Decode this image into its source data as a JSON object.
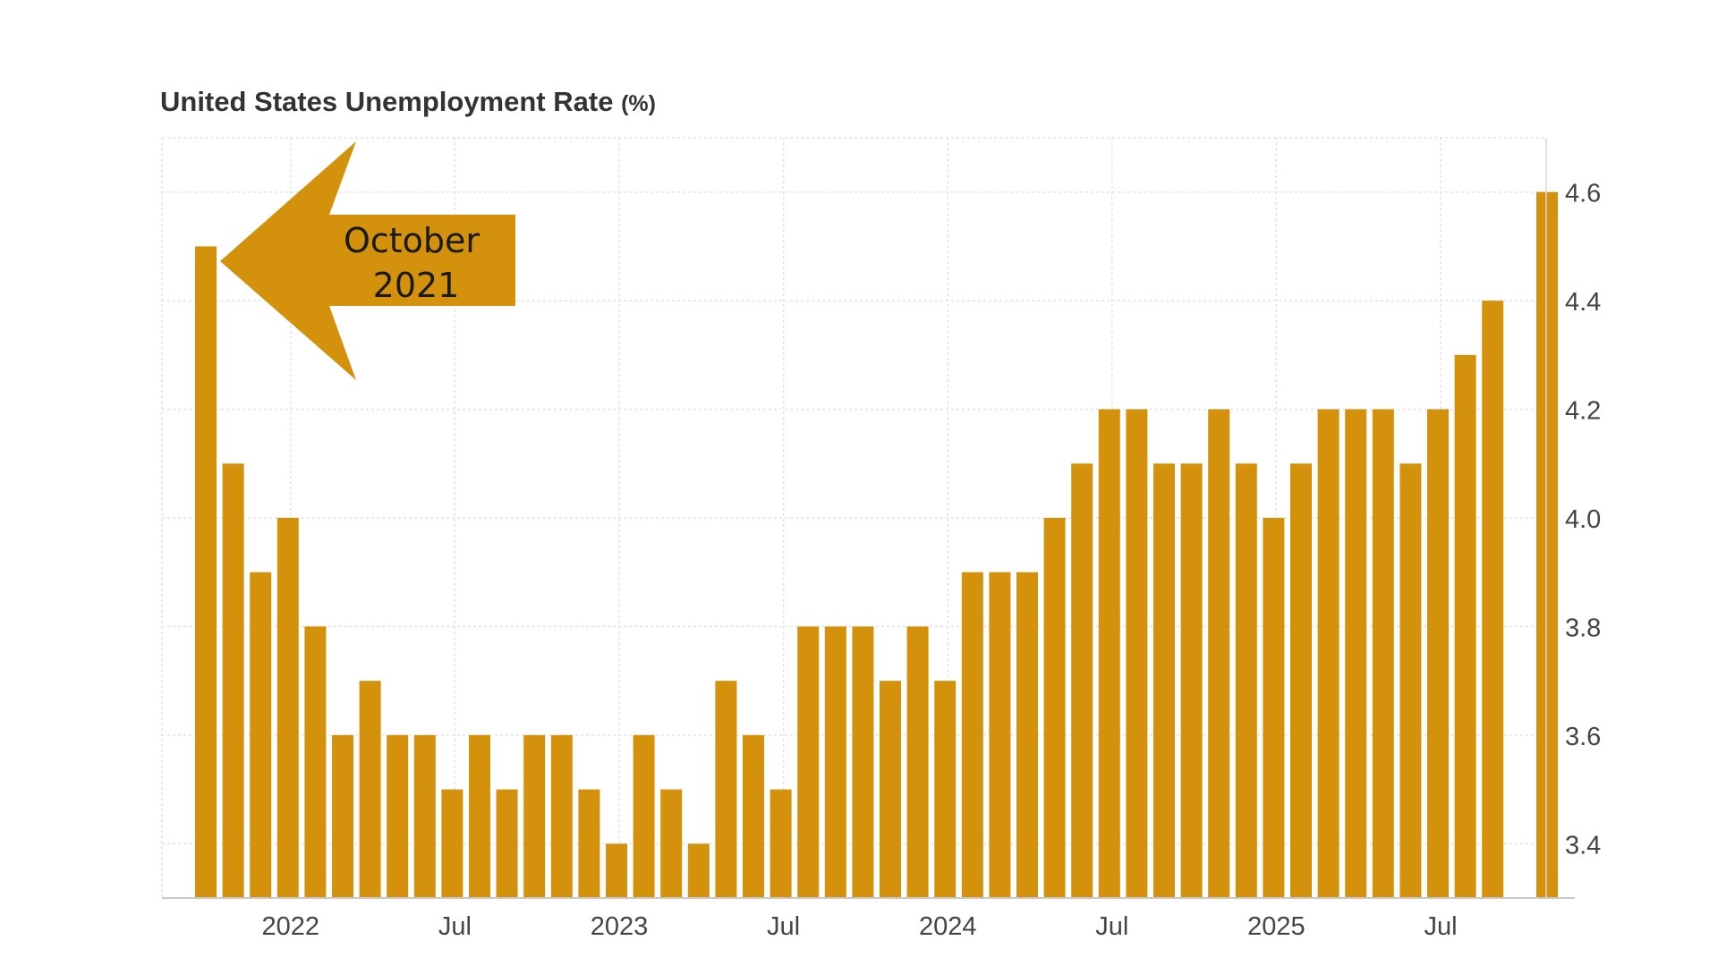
{
  "chart_data": {
    "type": "bar",
    "title": "United States Unemployment Rate",
    "title_unit": "(%)",
    "x": [
      "2021-10",
      "2021-11",
      "2021-12",
      "2022-01",
      "2022-02",
      "2022-03",
      "2022-04",
      "2022-05",
      "2022-06",
      "2022-07",
      "2022-08",
      "2022-09",
      "2022-10",
      "2022-11",
      "2022-12",
      "2023-01",
      "2023-02",
      "2023-03",
      "2023-04",
      "2023-05",
      "2023-06",
      "2023-07",
      "2023-08",
      "2023-09",
      "2023-10",
      "2023-11",
      "2023-12",
      "2024-01",
      "2024-02",
      "2024-03",
      "2024-04",
      "2024-05",
      "2024-06",
      "2024-07",
      "2024-08",
      "2024-09",
      "2024-10",
      "2024-11",
      "2024-12",
      "2025-01",
      "2025-02",
      "2025-03",
      "2025-04",
      "2025-05",
      "2025-06",
      "2025-07",
      "2025-08",
      "2025-09"
    ],
    "values": [
      4.5,
      4.1,
      3.9,
      4.0,
      3.8,
      3.6,
      3.7,
      3.6,
      3.6,
      3.5,
      3.6,
      3.5,
      3.6,
      3.6,
      3.5,
      3.4,
      3.6,
      3.5,
      3.4,
      3.7,
      3.6,
      3.5,
      3.8,
      3.8,
      3.8,
      3.7,
      3.8,
      3.7,
      3.9,
      3.9,
      3.9,
      4.0,
      4.1,
      4.2,
      4.2,
      4.1,
      4.1,
      4.2,
      4.1,
      4.0,
      4.1,
      4.2,
      4.2,
      4.2,
      4.1,
      4.2,
      4.3,
      4.4
    ],
    "extra_bar": {
      "value": 4.6
    },
    "x_tick_labels": [
      {
        "label": "2022",
        "x": "2022-01"
      },
      {
        "label": "Jul",
        "x": "2022-07"
      },
      {
        "label": "2023",
        "x": "2023-01"
      },
      {
        "label": "Jul",
        "x": "2023-07"
      },
      {
        "label": "2024",
        "x": "2024-01"
      },
      {
        "label": "Jul",
        "x": "2024-07"
      },
      {
        "label": "2025",
        "x": "2025-01"
      },
      {
        "label": "Jul",
        "x": "2025-07"
      }
    ],
    "y_ticks": [
      "3.4",
      "3.6",
      "3.8",
      "4.0",
      "4.2",
      "4.4",
      "4.6"
    ],
    "ylim": [
      3.3,
      4.7
    ],
    "y_axis_side": "right",
    "grid": true,
    "bar_color": "#D4920C",
    "annotation": {
      "line1": "October",
      "line2": "2021",
      "points_to": "2021-10",
      "color": "#D4920C"
    }
  }
}
